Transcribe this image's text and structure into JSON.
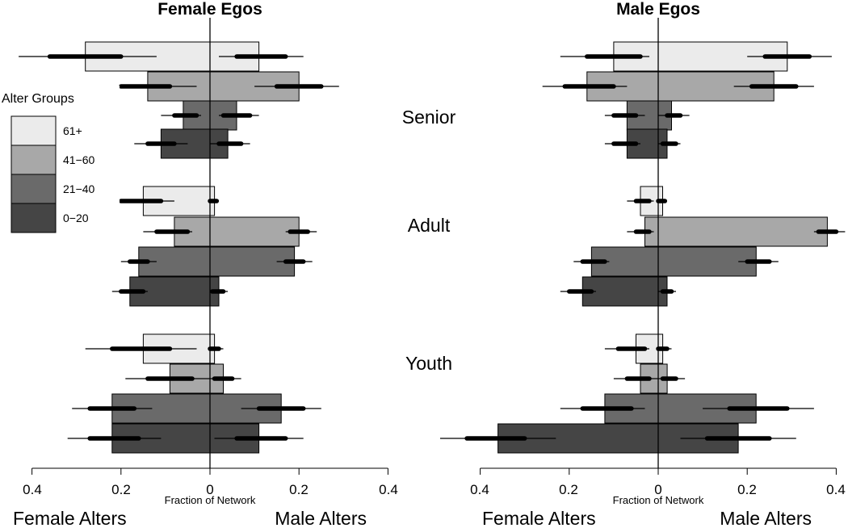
{
  "chart_data": {
    "type": "bar",
    "subtype": "back-to-back horizontal bars with uncertainty intervals",
    "ego_groups": [
      "Senior",
      "Adult",
      "Youth"
    ],
    "axis_title": "Fraction of Network",
    "left_direction_label": "Female Alters",
    "right_direction_label": "Male Alters",
    "tick_labels": [
      "0.4",
      "0.2",
      "0",
      "0.2",
      "0.4"
    ],
    "tick_values": [
      -0.4,
      -0.2,
      0,
      0.2,
      0.4
    ],
    "xlim": [
      -0.4,
      0.4
    ],
    "grid": false,
    "legend": {
      "title": "Alter Groups",
      "position": "left",
      "entries": [
        {
          "label": "61+",
          "color": "#ebebeb"
        },
        {
          "label": "41−60",
          "color": "#a8a8a8"
        },
        {
          "label": "21−40",
          "color": "#6a6a6a"
        },
        {
          "label": "0−20",
          "color": "#454545"
        }
      ]
    },
    "panels": [
      {
        "title": "Female Egos",
        "groups": [
          {
            "name": "Senior",
            "bars": [
              {
                "alter_group": "61+",
                "female": 0.28,
                "male": 0.11,
                "female_ci": [
                  0.12,
                  0.43
                ],
                "female_ci_inner": [
                  0.2,
                  0.36
                ],
                "male_ci": [
                  0.02,
                  0.21
                ],
                "male_ci_inner": [
                  0.06,
                  0.17
                ]
              },
              {
                "alter_group": "41-60",
                "female": 0.14,
                "male": 0.2,
                "female_ci": [
                  0.03,
                  0.25
                ],
                "female_ci_inner": [
                  0.09,
                  0.2
                ],
                "male_ci": [
                  0.1,
                  0.29
                ],
                "male_ci_inner": [
                  0.15,
                  0.25
                ]
              },
              {
                "alter_group": "21-40",
                "female": 0.06,
                "male": 0.06,
                "female_ci": [
                  0.02,
                  0.11
                ],
                "female_ci_inner": [
                  0.03,
                  0.08
                ],
                "male_ci": [
                  0.02,
                  0.11
                ],
                "male_ci_inner": [
                  0.03,
                  0.09
                ]
              },
              {
                "alter_group": "0-20",
                "female": 0.11,
                "male": 0.04,
                "female_ci": [
                  0.05,
                  0.17
                ],
                "female_ci_inner": [
                  0.08,
                  0.14
                ],
                "male_ci": [
                  0.0,
                  0.09
                ],
                "male_ci_inner": [
                  0.02,
                  0.07
                ]
              }
            ]
          },
          {
            "name": "Adult",
            "bars": [
              {
                "alter_group": "61+",
                "female": 0.15,
                "male": 0.01,
                "female_ci": [
                  0.08,
                  0.24
                ],
                "female_ci_inner": [
                  0.11,
                  0.2
                ],
                "male_ci": [
                  0.0,
                  0.02
                ],
                "male_ci_inner": [
                  0.0,
                  0.015
                ]
              },
              {
                "alter_group": "41-60",
                "female": 0.08,
                "male": 0.2,
                "female_ci": [
                  0.04,
                  0.15
                ],
                "female_ci_inner": [
                  0.05,
                  0.12
                ],
                "male_ci": [
                  0.17,
                  0.24
                ],
                "male_ci_inner": [
                  0.18,
                  0.22
                ]
              },
              {
                "alter_group": "21-40",
                "female": 0.16,
                "male": 0.19,
                "female_ci": [
                  0.12,
                  0.2
                ],
                "female_ci_inner": [
                  0.14,
                  0.18
                ],
                "male_ci": [
                  0.15,
                  0.23
                ],
                "male_ci_inner": [
                  0.17,
                  0.21
                ]
              },
              {
                "alter_group": "0-20",
                "female": 0.18,
                "male": 0.02,
                "female_ci": [
                  0.14,
                  0.22
                ],
                "female_ci_inner": [
                  0.15,
                  0.2
                ],
                "male_ci": [
                  0.0,
                  0.04
                ],
                "male_ci_inner": [
                  0.005,
                  0.03
                ]
              }
            ]
          },
          {
            "name": "Youth",
            "bars": [
              {
                "alter_group": "61+",
                "female": 0.15,
                "male": 0.01,
                "female_ci": [
                  0.03,
                  0.28
                ],
                "female_ci_inner": [
                  0.09,
                  0.22
                ],
                "male_ci": [
                  0.0,
                  0.03
                ],
                "male_ci_inner": [
                  0.0,
                  0.02
                ]
              },
              {
                "alter_group": "41-60",
                "female": 0.09,
                "male": 0.03,
                "female_ci": [
                  0.0,
                  0.19
                ],
                "female_ci_inner": [
                  0.04,
                  0.14
                ],
                "male_ci": [
                  0.0,
                  0.07
                ],
                "male_ci_inner": [
                  0.01,
                  0.05
                ]
              },
              {
                "alter_group": "21-40",
                "female": 0.22,
                "male": 0.16,
                "female_ci": [
                  0.13,
                  0.31
                ],
                "female_ci_inner": [
                  0.17,
                  0.27
                ],
                "male_ci": [
                  0.07,
                  0.25
                ],
                "male_ci_inner": [
                  0.11,
                  0.21
                ]
              },
              {
                "alter_group": "0-20",
                "female": 0.22,
                "male": 0.11,
                "female_ci": [
                  0.11,
                  0.32
                ],
                "female_ci_inner": [
                  0.16,
                  0.27
                ],
                "male_ci": [
                  0.01,
                  0.21
                ],
                "male_ci_inner": [
                  0.06,
                  0.17
                ]
              }
            ]
          }
        ]
      },
      {
        "title": "Male Egos",
        "groups": [
          {
            "name": "Senior",
            "bars": [
              {
                "alter_group": "61+",
                "female": 0.1,
                "male": 0.29,
                "female_ci": [
                  0.02,
                  0.22
                ],
                "female_ci_inner": [
                  0.04,
                  0.16
                ],
                "male_ci": [
                  0.2,
                  0.39
                ],
                "male_ci_inner": [
                  0.24,
                  0.34
                ]
              },
              {
                "alter_group": "41-60",
                "female": 0.16,
                "male": 0.26,
                "female_ci": [
                  0.07,
                  0.26
                ],
                "female_ci_inner": [
                  0.1,
                  0.21
                ],
                "male_ci": [
                  0.17,
                  0.35
                ],
                "male_ci_inner": [
                  0.21,
                  0.31
                ]
              },
              {
                "alter_group": "21-40",
                "female": 0.07,
                "male": 0.03,
                "female_ci": [
                  0.03,
                  0.12
                ],
                "female_ci_inner": [
                  0.05,
                  0.1
                ],
                "male_ci": [
                  0.0,
                  0.07
                ],
                "male_ci_inner": [
                  0.02,
                  0.05
                ]
              },
              {
                "alter_group": "0-20",
                "female": 0.07,
                "male": 0.02,
                "female_ci": [
                  0.04,
                  0.12
                ],
                "female_ci_inner": [
                  0.05,
                  0.1
                ],
                "male_ci": [
                  0.0,
                  0.05
                ],
                "male_ci_inner": [
                  0.01,
                  0.04
                ]
              }
            ]
          },
          {
            "name": "Adult",
            "bars": [
              {
                "alter_group": "61+",
                "female": 0.04,
                "male": 0.01,
                "female_ci": [
                  0.01,
                  0.07
                ],
                "female_ci_inner": [
                  0.02,
                  0.05
                ],
                "male_ci": [
                  0.0,
                  0.02
                ],
                "male_ci_inner": [
                  0.0,
                  0.015
                ]
              },
              {
                "alter_group": "41-60",
                "female": 0.03,
                "male": 0.38,
                "female_ci": [
                  0.01,
                  0.07
                ],
                "female_ci_inner": [
                  0.02,
                  0.05
                ],
                "male_ci": [
                  0.35,
                  0.42
                ],
                "male_ci_inner": [
                  0.36,
                  0.4
                ]
              },
              {
                "alter_group": "21-40",
                "female": 0.15,
                "male": 0.22,
                "female_ci": [
                  0.11,
                  0.19
                ],
                "female_ci_inner": [
                  0.12,
                  0.17
                ],
                "male_ci": [
                  0.18,
                  0.27
                ],
                "male_ci_inner": [
                  0.2,
                  0.25
                ]
              },
              {
                "alter_group": "0-20",
                "female": 0.17,
                "male": 0.02,
                "female_ci": [
                  0.14,
                  0.22
                ],
                "female_ci_inner": [
                  0.15,
                  0.2
                ],
                "male_ci": [
                  0.0,
                  0.04
                ],
                "male_ci_inner": [
                  0.01,
                  0.03
                ]
              }
            ]
          },
          {
            "name": "Youth",
            "bars": [
              {
                "alter_group": "61+",
                "female": 0.05,
                "male": 0.01,
                "female_ci": [
                  0.02,
                  0.12
                ],
                "female_ci_inner": [
                  0.03,
                  0.09
                ],
                "male_ci": [
                  0.0,
                  0.03
                ],
                "male_ci_inner": [
                  0.0,
                  0.02
                ]
              },
              {
                "alter_group": "41-60",
                "female": 0.04,
                "male": 0.02,
                "female_ci": [
                  0.0,
                  0.1
                ],
                "female_ci_inner": [
                  0.02,
                  0.07
                ],
                "male_ci": [
                  0.0,
                  0.06
                ],
                "male_ci_inner": [
                  0.01,
                  0.04
                ]
              },
              {
                "alter_group": "21-40",
                "female": 0.12,
                "male": 0.22,
                "female_ci": [
                  0.03,
                  0.22
                ],
                "female_ci_inner": [
                  0.06,
                  0.17
                ],
                "male_ci": [
                  0.1,
                  0.35
                ],
                "male_ci_inner": [
                  0.16,
                  0.29
                ]
              },
              {
                "alter_group": "0-20",
                "female": 0.36,
                "male": 0.18,
                "female_ci": [
                  0.23,
                  0.49
                ],
                "female_ci_inner": [
                  0.3,
                  0.43
                ],
                "male_ci": [
                  0.05,
                  0.31
                ],
                "male_ci_inner": [
                  0.11,
                  0.25
                ]
              }
            ]
          }
        ]
      }
    ]
  }
}
